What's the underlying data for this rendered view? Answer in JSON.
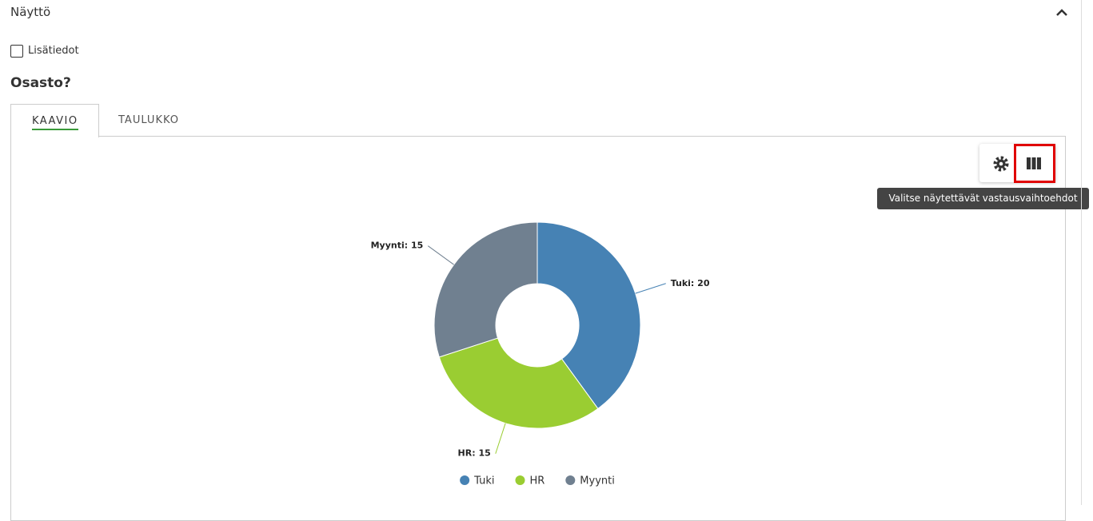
{
  "header": {
    "title": "Näyttö"
  },
  "checkbox": {
    "label": "Lisätiedot"
  },
  "question": {
    "title": "Osasto?"
  },
  "tabs": [
    "KAAVIO",
    "TAULUKKO"
  ],
  "tooltip": "Valitse näytettävät vastausvaihtoehdot",
  "chart_data": {
    "type": "donut",
    "categories": [
      "Tuki",
      "HR",
      "Myynti"
    ],
    "values": [
      20,
      15,
      15
    ],
    "value_labels": [
      "Tuki: 20",
      "HR: 15",
      "Myynti: 15"
    ],
    "colors": [
      "#4682b4",
      "#9acd32",
      "#708090"
    ],
    "legend": "bottom"
  }
}
